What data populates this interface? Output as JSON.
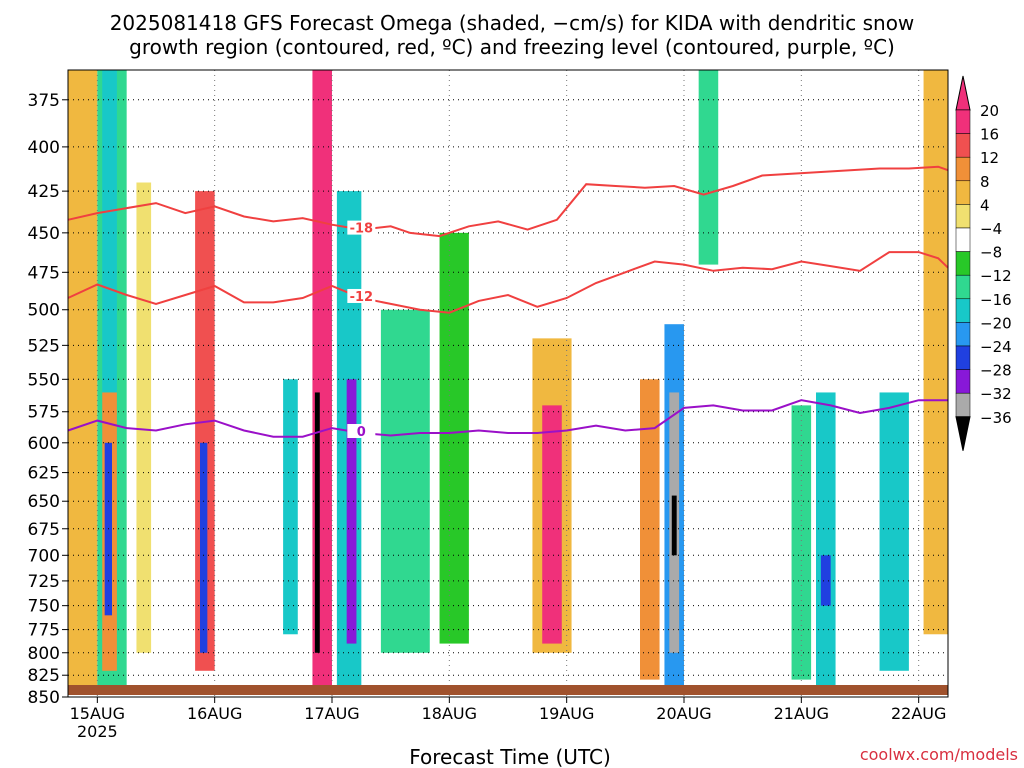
{
  "chart_data": {
    "type": "heatmap",
    "title_line1": "2025081418 GFS Forecast Omega (shaded, −cm/s) for KIDA with dendritic snow",
    "title_line2": "growth region (contoured, red, ºC) and freezing level (contoured, purple, ºC)",
    "xlabel": "Forecast Time (UTC)",
    "ylabel": "",
    "watermark": "coolwx.com/models",
    "x_ticks": [
      "15AUG",
      "16AUG",
      "17AUG",
      "18AUG",
      "19AUG",
      "20AUG",
      "21AUG",
      "22AUG"
    ],
    "x_tick_hours": [
      6,
      30,
      54,
      78,
      102,
      126,
      150,
      174
    ],
    "x_year_label": "2025",
    "xlim_hours": [
      0,
      180
    ],
    "y_ticks": [
      375,
      400,
      425,
      450,
      475,
      500,
      525,
      550,
      575,
      600,
      625,
      650,
      675,
      700,
      725,
      750,
      775,
      800,
      825,
      850
    ],
    "ylim": [
      850,
      360
    ],
    "y_scale": "log-pressure",
    "grid": true,
    "colorbar": {
      "ticks": [
        "20",
        "16",
        "12",
        "8",
        "4",
        "−4",
        "−8",
        "−12",
        "−16",
        "−20",
        "−24",
        "−28",
        "−32",
        "−36"
      ],
      "colors": [
        "#f0307a",
        "#f05050",
        "#f09038",
        "#f0b840",
        "#f0e070",
        "#ffffff",
        "#28c828",
        "#30d890",
        "#18c8c8",
        "#2898f0",
        "#2040e0",
        "#8818d8",
        "#aaaaaa",
        "#000000"
      ]
    },
    "omega_shading": [
      {
        "x": [
          0,
          6
        ],
        "p": [
          360,
          840
        ],
        "v": 8
      },
      {
        "x": [
          6,
          12
        ],
        "p": [
          360,
          840
        ],
        "v": -8
      },
      {
        "x": [
          7,
          10
        ],
        "p": [
          360,
          640
        ],
        "v": -14
      },
      {
        "x": [
          7,
          10
        ],
        "p": [
          560,
          820
        ],
        "v": 14
      },
      {
        "x": [
          7.5,
          9
        ],
        "p": [
          600,
          760
        ],
        "v": -22
      },
      {
        "x": [
          14,
          17
        ],
        "p": [
          420,
          800
        ],
        "v": 6
      },
      {
        "x": [
          26,
          30
        ],
        "p": [
          425,
          820
        ],
        "v": 16
      },
      {
        "x": [
          27,
          28.5
        ],
        "p": [
          600,
          800
        ],
        "v": -22
      },
      {
        "x": [
          44,
          47
        ],
        "p": [
          550,
          780
        ],
        "v": -14
      },
      {
        "x": [
          50,
          54
        ],
        "p": [
          360,
          840
        ],
        "v": 20
      },
      {
        "x": [
          50.5,
          51.5
        ],
        "p": [
          560,
          800
        ],
        "v": -36
      },
      {
        "x": [
          55,
          60
        ],
        "p": [
          425,
          840
        ],
        "v": -14
      },
      {
        "x": [
          57,
          59
        ],
        "p": [
          550,
          790
        ],
        "v": -26
      },
      {
        "x": [
          64,
          74
        ],
        "p": [
          500,
          800
        ],
        "v": -8
      },
      {
        "x": [
          76,
          82
        ],
        "p": [
          450,
          790
        ],
        "v": -6
      },
      {
        "x": [
          95,
          103
        ],
        "p": [
          520,
          800
        ],
        "v": 8
      },
      {
        "x": [
          97,
          101
        ],
        "p": [
          570,
          790
        ],
        "v": 20
      },
      {
        "x": [
          117,
          121
        ],
        "p": [
          550,
          830
        ],
        "v": 14
      },
      {
        "x": [
          122,
          126
        ],
        "p": [
          510,
          840
        ],
        "v": -16
      },
      {
        "x": [
          123,
          125
        ],
        "p": [
          560,
          800
        ],
        "v": -28
      },
      {
        "x": [
          123.5,
          124.5
        ],
        "p": [
          645,
          700
        ],
        "v": -36
      },
      {
        "x": [
          129,
          133
        ],
        "p": [
          360,
          470
        ],
        "v": -8
      },
      {
        "x": [
          148,
          152
        ],
        "p": [
          570,
          830
        ],
        "v": -10
      },
      {
        "x": [
          153,
          157
        ],
        "p": [
          560,
          840
        ],
        "v": -14
      },
      {
        "x": [
          154,
          156
        ],
        "p": [
          700,
          750
        ],
        "v": -22
      },
      {
        "x": [
          166,
          172
        ],
        "p": [
          560,
          820
        ],
        "v": -12
      },
      {
        "x": [
          175,
          180
        ],
        "p": [
          360,
          780
        ],
        "v": 10
      }
    ],
    "dendritic_contours": [
      {
        "label": "-18",
        "x": [
          0,
          6,
          12,
          18,
          24,
          30,
          36,
          42,
          48,
          54,
          60,
          66,
          70,
          76,
          82,
          88,
          94,
          100,
          106,
          112,
          118,
          124,
          130,
          136,
          142,
          148,
          154,
          160,
          166,
          172,
          178,
          180
        ],
        "p": [
          442,
          438,
          435,
          432,
          438,
          434,
          440,
          443,
          441,
          445,
          448,
          446,
          450,
          452,
          446,
          443,
          448,
          442,
          421,
          422,
          423,
          422,
          427,
          422,
          416,
          415,
          414,
          413,
          412,
          412,
          411,
          413
        ]
      },
      {
        "label": "-12",
        "x": [
          0,
          6,
          12,
          18,
          24,
          30,
          36,
          42,
          48,
          54,
          60,
          66,
          72,
          78,
          84,
          90,
          96,
          102,
          108,
          114,
          120,
          126,
          132,
          138,
          144,
          150,
          156,
          162,
          168,
          174,
          178,
          180
        ],
        "p": [
          492,
          483,
          490,
          496,
          490,
          484,
          495,
          495,
          492,
          484,
          492,
          496,
          500,
          502,
          494,
          490,
          498,
          492,
          482,
          475,
          468,
          470,
          474,
          472,
          473,
          468,
          471,
          474,
          462,
          462,
          466,
          472
        ]
      },
      {
        "label": "0",
        "label_color": "purple",
        "x": [
          0,
          6,
          12,
          18,
          24,
          30,
          36,
          42,
          48,
          54,
          60,
          66,
          72,
          78,
          84,
          90,
          96,
          102,
          108,
          114,
          120,
          126,
          132,
          138,
          144,
          150,
          156,
          162,
          168,
          174,
          178,
          180
        ],
        "p": [
          590,
          582,
          588,
          590,
          585,
          582,
          590,
          595,
          595,
          588,
          592,
          594,
          592,
          592,
          590,
          592,
          592,
          590,
          586,
          590,
          588,
          572,
          570,
          574,
          574,
          566,
          570,
          576,
          572,
          566,
          566,
          566
        ]
      }
    ]
  }
}
